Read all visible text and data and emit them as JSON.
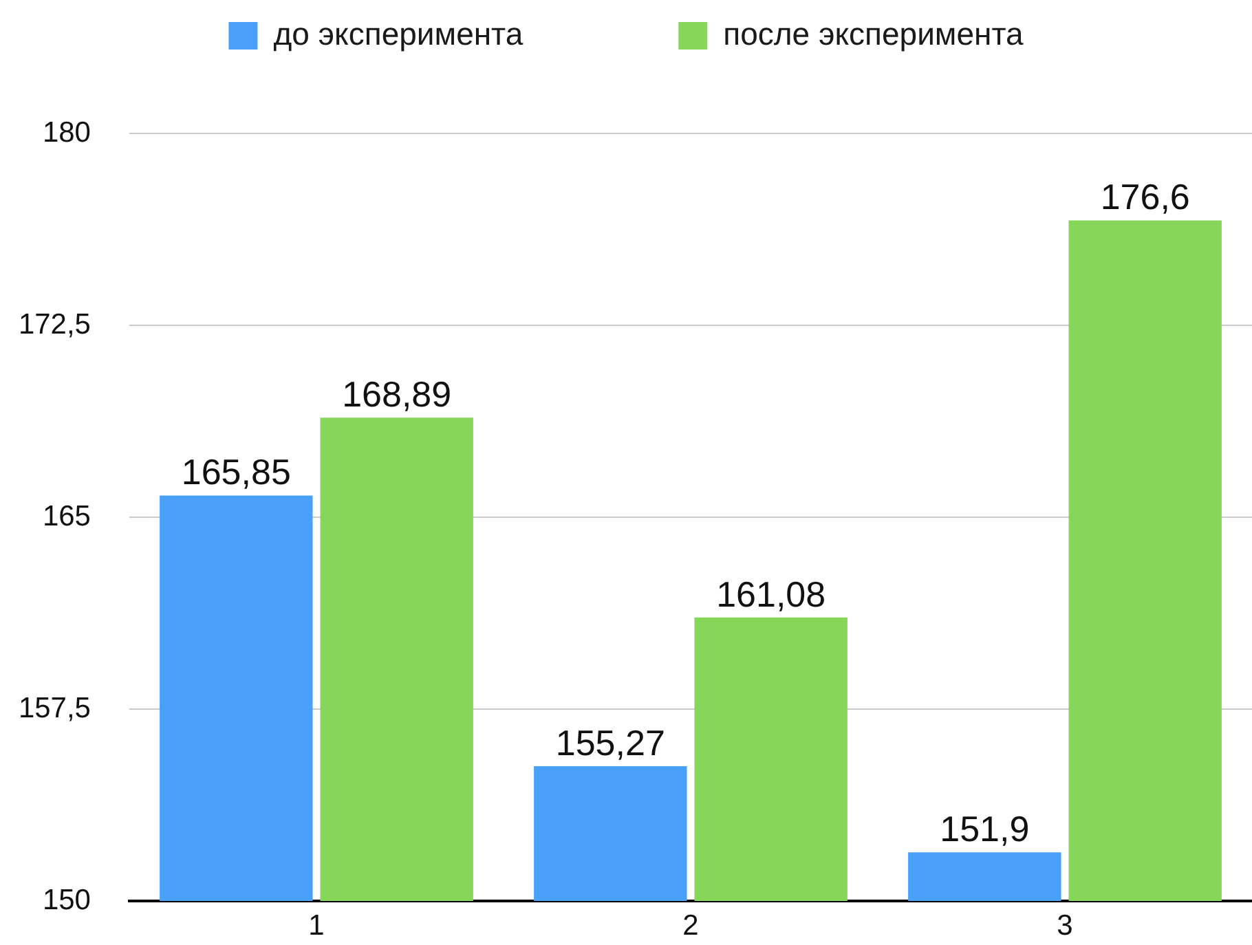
{
  "chart_data": {
    "type": "bar",
    "categories": [
      "1",
      "2",
      "3"
    ],
    "series": [
      {
        "name": "до эксперимента",
        "color": "#48a0f8",
        "values": [
          165.85,
          155.27,
          151.9
        ],
        "value_labels": [
          "165,85",
          "155,27",
          "151,9"
        ]
      },
      {
        "name": "после эксперимента",
        "color": "#86d65a",
        "values": [
          168.89,
          161.08,
          176.6
        ],
        "value_labels": [
          "168,89",
          "161,08",
          "176,6"
        ]
      }
    ],
    "ylim": [
      150,
      180
    ],
    "yticks": [
      150,
      {
        "value": 157.5,
        "label": "157,5"
      },
      165,
      {
        "value": 172.5,
        "label": "172,5"
      },
      180
    ],
    "grid": "y",
    "legend": "top"
  }
}
